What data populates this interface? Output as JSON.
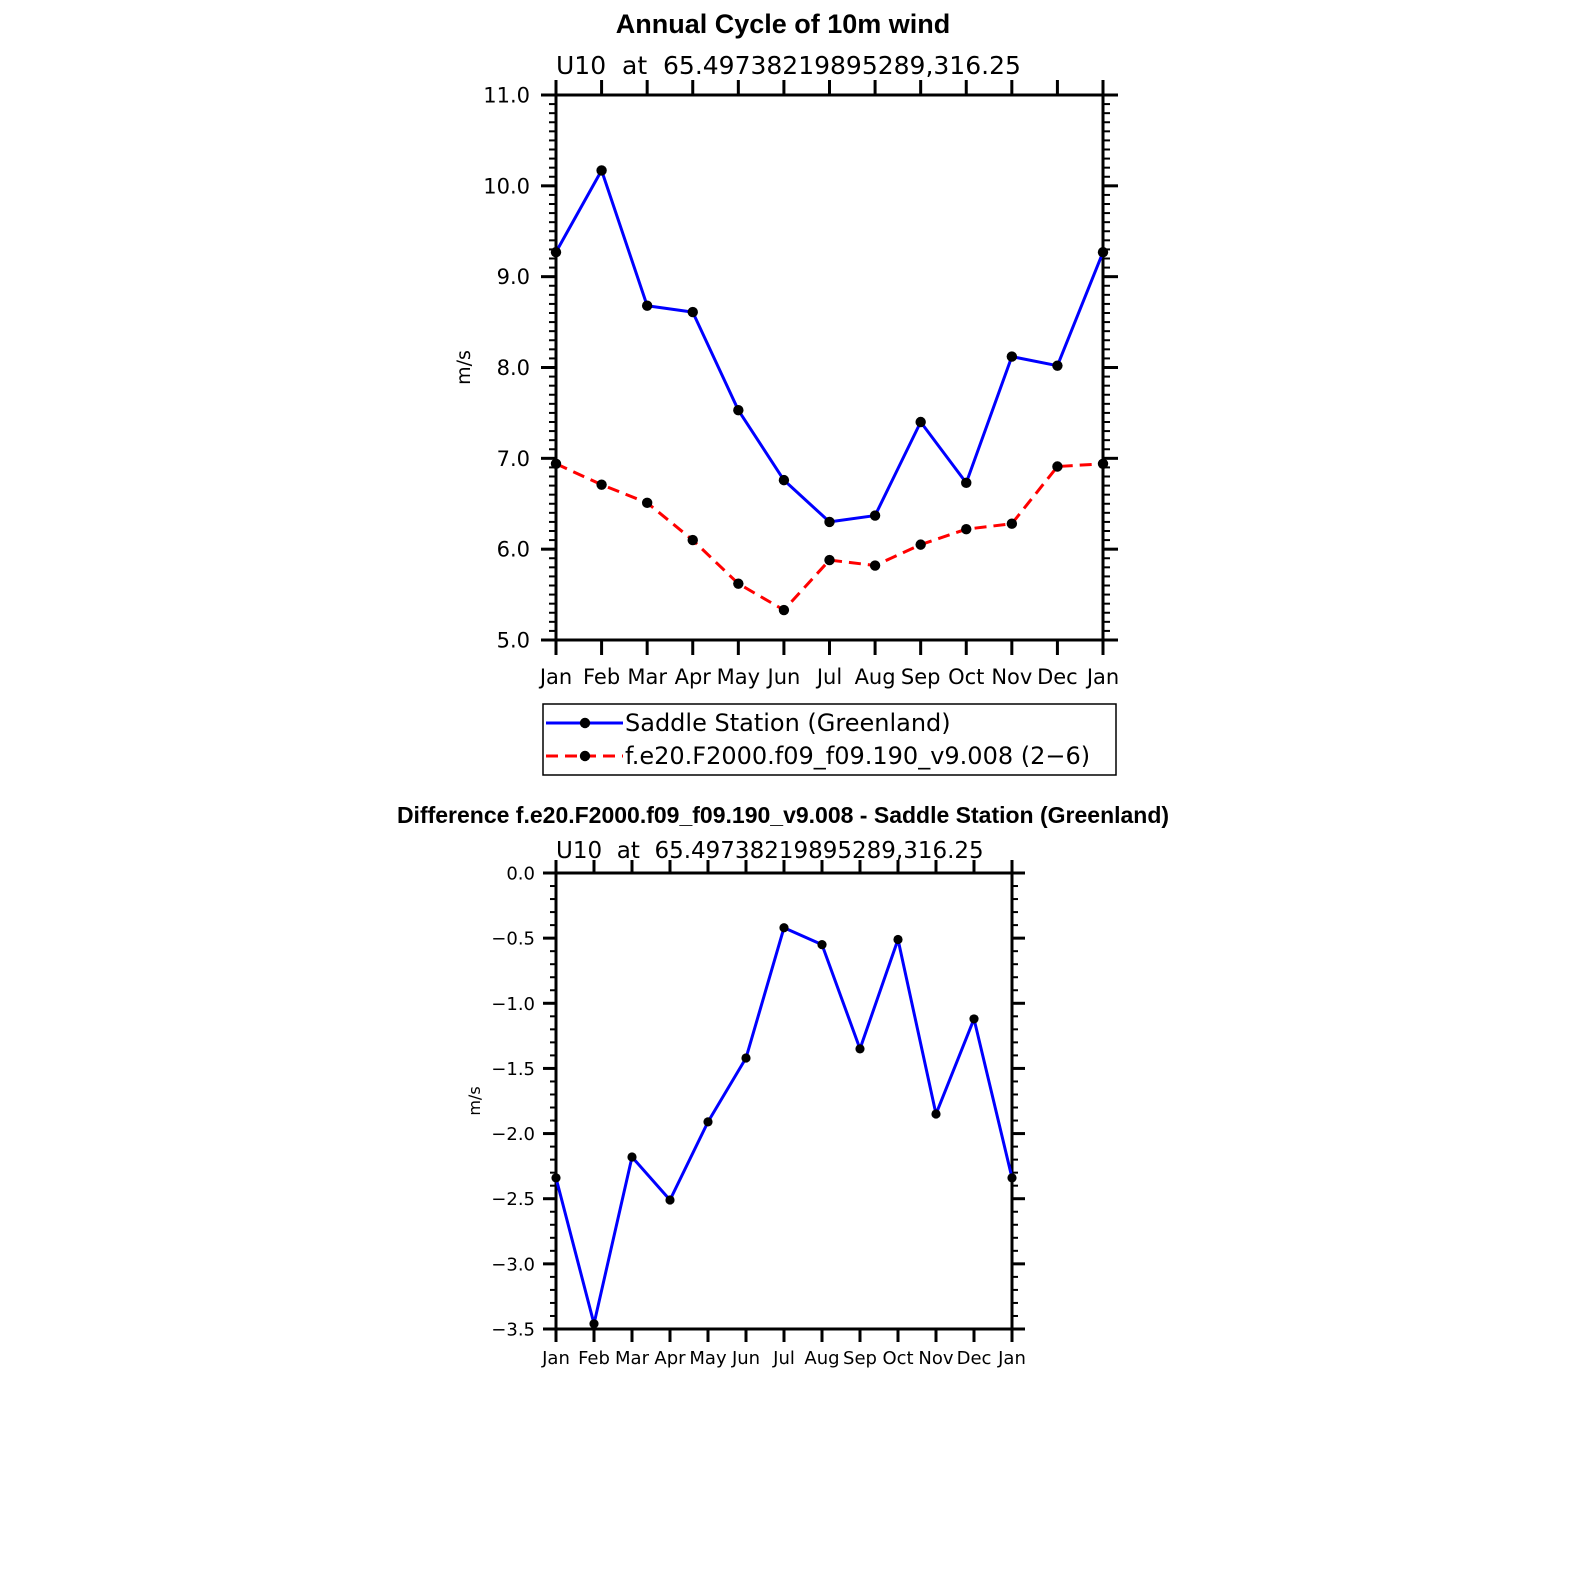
{
  "chart_data": [
    {
      "type": "line",
      "title": "Annual Cycle of 10m wind",
      "subtitle": "U10  at  65.49738219895289,316.25",
      "xlabel": "",
      "ylabel": "m/s",
      "categories": [
        "Jan",
        "Feb",
        "Mar",
        "Apr",
        "May",
        "Jun",
        "Jul",
        "Aug",
        "Sep",
        "Oct",
        "Nov",
        "Dec",
        "Jan"
      ],
      "ylim": [
        5.0,
        11.0
      ],
      "yticks": [
        "5.0",
        "6.0",
        "7.0",
        "8.0",
        "9.0",
        "10.0",
        "11.0"
      ],
      "grid": false,
      "legend_position": "below",
      "series": [
        {
          "name": "Saddle Station (Greenland)",
          "color": "#0000ff",
          "dash": "solid",
          "values": [
            9.27,
            10.17,
            8.68,
            8.61,
            7.53,
            6.76,
            6.3,
            6.37,
            7.4,
            6.73,
            8.12,
            8.02,
            9.27
          ]
        },
        {
          "name": "f.e20.F2000.f09_f09.190_v9.008 (2−6)",
          "color": "#ff0000",
          "dash": "dashed",
          "values": [
            6.94,
            6.71,
            6.51,
            6.1,
            5.62,
            5.33,
            5.88,
            5.82,
            6.05,
            6.22,
            6.28,
            6.91,
            6.94
          ]
        }
      ]
    },
    {
      "type": "line",
      "title": "Difference f.e20.F2000.f09_f09.190_v9.008 - Saddle Station (Greenland)",
      "subtitle": "U10  at  65.49738219895289,316.25",
      "xlabel": "",
      "ylabel": "m/s",
      "categories": [
        "Jan",
        "Feb",
        "Mar",
        "Apr",
        "May",
        "Jun",
        "Jul",
        "Aug",
        "Sep",
        "Oct",
        "Nov",
        "Dec",
        "Jan"
      ],
      "ylim": [
        -3.5,
        0.0
      ],
      "yticks": [
        "−3.5",
        "−3.0",
        "−2.5",
        "−2.0",
        "−1.5",
        "−1.0",
        "−0.5",
        "0.0"
      ],
      "grid": false,
      "series": [
        {
          "color": "#0000ff",
          "dash": "solid",
          "values": [
            -2.34,
            -3.46,
            -2.18,
            -2.51,
            -1.91,
            -1.42,
            -0.42,
            -0.55,
            -1.35,
            -0.51,
            -1.85,
            -1.12,
            -2.34
          ]
        }
      ]
    }
  ]
}
